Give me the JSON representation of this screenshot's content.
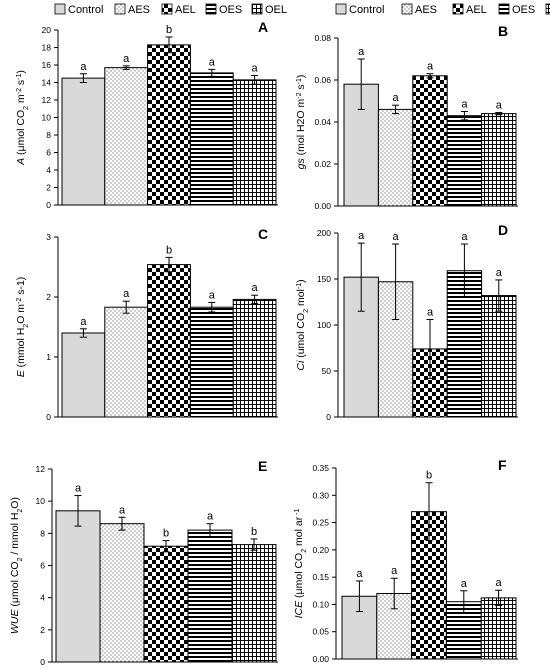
{
  "colors": {
    "axis": "#000000",
    "bar_edge": "#000000",
    "control_fill": "#d9d9d9",
    "pattern_ink": "#000000",
    "background": "#ffffff"
  },
  "legend": [
    {
      "label": "Control",
      "pattern": "solid-gray"
    },
    {
      "label": "AES",
      "pattern": "dots"
    },
    {
      "label": "AEL",
      "pattern": "checker"
    },
    {
      "label": "OES",
      "pattern": "horizontal-lines"
    },
    {
      "label": "OEL",
      "pattern": "grid"
    }
  ],
  "chart_data": [
    {
      "type": "bar",
      "panel_letter": "A",
      "ylabel": [
        "A",
        " (μmol CO",
        "2",
        " m",
        "-2",
        " s",
        "-1",
        ")"
      ],
      "ylim": [
        0,
        20
      ],
      "yticks": [
        "0",
        "2",
        "4",
        "6",
        "8",
        "10",
        "12",
        "14",
        "16",
        "18",
        "20"
      ],
      "series": [
        {
          "name": "Control",
          "value": 14.5,
          "error": 0.5,
          "letter": "a"
        },
        {
          "name": "AES",
          "value": 15.7,
          "error": 0.2,
          "letter": "a"
        },
        {
          "name": "AEL",
          "value": 18.3,
          "error": 0.9,
          "letter": "b"
        },
        {
          "name": "OES",
          "value": 15.1,
          "error": 0.4,
          "letter": "a"
        },
        {
          "name": "OEL",
          "value": 14.3,
          "error": 0.5,
          "letter": "a"
        }
      ]
    },
    {
      "type": "bar",
      "panel_letter": "B",
      "ylabel": [
        "gs",
        " (mol H2O m",
        "-2",
        " s",
        "-1",
        ")"
      ],
      "ylim": [
        0,
        0.08
      ],
      "yticks": [
        "0.00",
        "0.02",
        "0.04",
        "0.06",
        "0.08"
      ],
      "series": [
        {
          "name": "Control",
          "value": 0.058,
          "error": 0.012,
          "letter": "a"
        },
        {
          "name": "AES",
          "value": 0.046,
          "error": 0.002,
          "letter": "a"
        },
        {
          "name": "AEL",
          "value": 0.062,
          "error": 0.001,
          "letter": "a"
        },
        {
          "name": "OES",
          "value": 0.043,
          "error": 0.002,
          "letter": "a"
        },
        {
          "name": "OEL",
          "value": 0.044,
          "error": 0.0005,
          "letter": "a"
        }
      ]
    },
    {
      "type": "bar",
      "panel_letter": "C",
      "ylabel": [
        "E",
        " (mmol H",
        "2",
        "O m",
        "-2",
        " s-1)"
      ],
      "ylim": [
        0,
        3
      ],
      "yticks": [
        "0",
        "1",
        "2",
        "3"
      ],
      "series": [
        {
          "name": "Control",
          "value": 1.4,
          "error": 0.07,
          "letter": "a"
        },
        {
          "name": "AES",
          "value": 1.83,
          "error": 0.1,
          "letter": "a"
        },
        {
          "name": "AEL",
          "value": 2.54,
          "error": 0.12,
          "letter": "b"
        },
        {
          "name": "OES",
          "value": 1.83,
          "error": 0.08,
          "letter": "a"
        },
        {
          "name": "OEL",
          "value": 1.96,
          "error": 0.07,
          "letter": "a"
        }
      ]
    },
    {
      "type": "bar",
      "panel_letter": "D",
      "ylabel": [
        "Ci",
        " (umol CO",
        "2",
        " mol",
        "-1",
        ")"
      ],
      "ylim": [
        0,
        200
      ],
      "yticks": [
        "0",
        "50",
        "100",
        "150",
        "200"
      ],
      "series": [
        {
          "name": "Control",
          "value": 152,
          "error": 37,
          "letter": "a"
        },
        {
          "name": "AES",
          "value": 147,
          "error": 41,
          "letter": "a"
        },
        {
          "name": "AEL",
          "value": 74,
          "error": 32,
          "letter": "a"
        },
        {
          "name": "OES",
          "value": 159,
          "error": 29,
          "letter": "a"
        },
        {
          "name": "OEL",
          "value": 132,
          "error": 17,
          "letter": "a"
        }
      ]
    },
    {
      "type": "bar",
      "panel_letter": "E",
      "ylabel": [
        "WUE",
        " (μmol CO",
        "2",
        " / mmol H",
        "2",
        "O)"
      ],
      "ylim": [
        0,
        12
      ],
      "yticks": [
        "0",
        "2",
        "4",
        "6",
        "8",
        "10",
        "12"
      ],
      "series": [
        {
          "name": "Control",
          "value": 9.4,
          "error": 0.95,
          "letter": "a"
        },
        {
          "name": "AES",
          "value": 8.6,
          "error": 0.4,
          "letter": "a"
        },
        {
          "name": "AEL",
          "value": 7.2,
          "error": 0.35,
          "letter": "b"
        },
        {
          "name": "OES",
          "value": 8.2,
          "error": 0.4,
          "letter": "a"
        },
        {
          "name": "OEL",
          "value": 7.3,
          "error": 0.35,
          "letter": "b"
        }
      ]
    },
    {
      "type": "bar",
      "panel_letter": "F",
      "ylabel": [
        "ICE",
        " (μmol CO",
        "2",
        " mol ar",
        " -1",
        ""
      ],
      "ylim": [
        0,
        0.35
      ],
      "yticks": [
        "0.00",
        "0.05",
        "0.10",
        "0.15",
        "0.20",
        "0.25",
        "0.30",
        "0.35"
      ],
      "series": [
        {
          "name": "Control",
          "value": 0.115,
          "error": 0.028,
          "letter": "a"
        },
        {
          "name": "AES",
          "value": 0.12,
          "error": 0.028,
          "letter": "a"
        },
        {
          "name": "AEL",
          "value": 0.27,
          "error": 0.053,
          "letter": "b"
        },
        {
          "name": "OES",
          "value": 0.105,
          "error": 0.02,
          "letter": "a"
        },
        {
          "name": "OEL",
          "value": 0.112,
          "error": 0.014,
          "letter": "a"
        }
      ]
    }
  ]
}
